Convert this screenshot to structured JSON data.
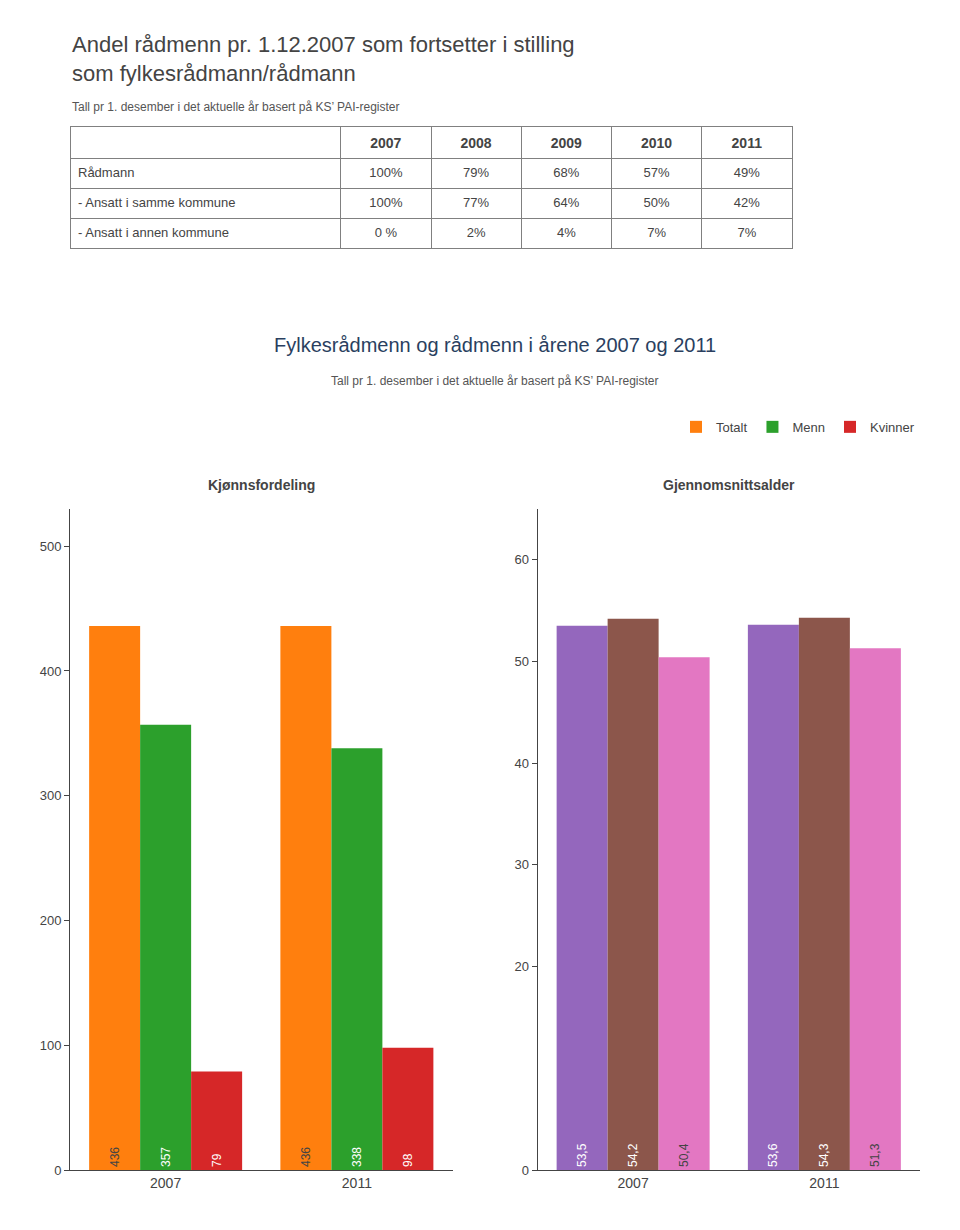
{
  "chart_data": [
    {
      "type": "table",
      "title": "Andel rådmenn pr. 1.12.2007 som fortsetter i stilling\nsom fylkesrådmann/rådmann",
      "subtitle": "Tall pr 1. desember i det aktuelle år basert på KS’ PAI-register",
      "header": [
        "2007",
        "2008",
        "2009",
        "2010",
        "2011"
      ],
      "rows": [
        {
          "label": "Rådmann",
          "values": [
            "100%",
            "79%",
            "68%",
            "57%",
            "49%"
          ]
        },
        {
          "label": "- Ansatt i samme kommune",
          "values": [
            "100%",
            "77%",
            "64%",
            "50%",
            "42%"
          ]
        },
        {
          "label": "- Ansatt i annen kommune",
          "values": [
            "0 %",
            "2%",
            "4%",
            "7%",
            "7%"
          ]
        }
      ]
    },
    {
      "type": "bar",
      "title": "Kjønnsfordeling",
      "annotations": [
        "Fylkesrådmenn og rådmenn i årene 2007 og 2011",
        "Tall pr 1. desember i det aktuelle år basert på KS’ PAI-register"
      ],
      "categories": [
        "2007",
        "2011"
      ],
      "series": [
        {
          "name": "Totalt",
          "values": [
            436,
            436
          ]
        },
        {
          "name": "Menn",
          "values": [
            357,
            338
          ]
        },
        {
          "name": "Kvinner",
          "values": [
            79,
            98
          ]
        }
      ],
      "ylim": [
        0,
        530
      ],
      "yticks": [
        0,
        100,
        200,
        300,
        400,
        500
      ],
      "grid": false,
      "legend": "upper right",
      "data_labels": true
    },
    {
      "type": "bar",
      "title": "Gjennomsnittsalder",
      "categories": [
        "2007",
        "2011"
      ],
      "series": [
        {
          "name": "Totalt",
          "values": [
            53.5,
            53.6
          ],
          "value_labels": [
            "53,5",
            "53,6"
          ]
        },
        {
          "name": "Menn",
          "values": [
            54.2,
            54.3
          ],
          "value_labels": [
            "54,2",
            "54,3"
          ]
        },
        {
          "name": "Kvinner",
          "values": [
            50.4,
            51.3
          ],
          "value_labels": [
            "50,4",
            "51,3"
          ]
        }
      ],
      "ylim": [
        0,
        65
      ],
      "yticks": [
        0,
        20,
        30,
        40,
        50,
        60
      ],
      "grid": false,
      "data_labels": true
    }
  ]
}
